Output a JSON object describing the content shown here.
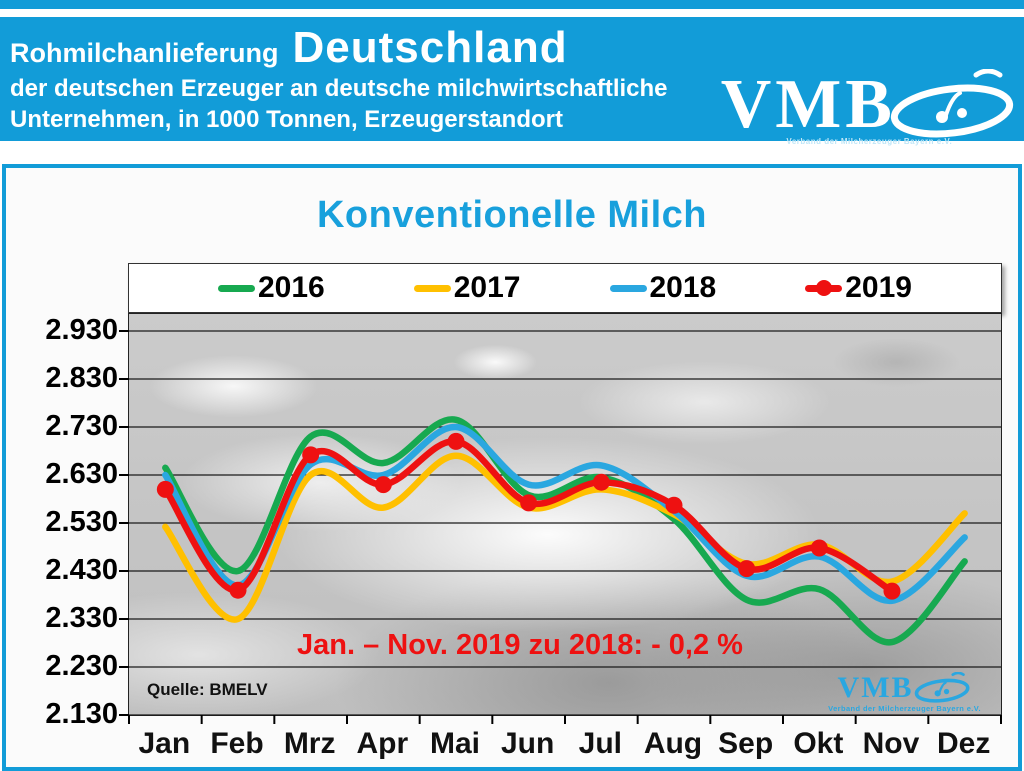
{
  "header": {
    "title_small": "Rohmilchanlieferung",
    "title_large": "Deutschland",
    "subtitle_line1": "der deutschen Erzeuger an deutsche milchwirtschaftliche",
    "subtitle_line2": "Unternehmen, in 1000 Tonnen, Erzeugerstandort",
    "logo_text": "VMB",
    "logo_tagline": "Verband der Milcherzeuger Bayern e.V."
  },
  "watermark": {
    "logo_text": "VMB",
    "tagline": "Verband der Milcherzeuger Bayern e.V."
  },
  "colors": {
    "banner_blue": "#129CD8",
    "title_blue": "#18A0DC",
    "annotation_red": "#EE1111",
    "grid_black": "#1a1a1a",
    "plot_gray": "#C6C6C6"
  },
  "chart_data": {
    "type": "line",
    "title": "Konventionelle Milch",
    "unit": "1000 Tonnen",
    "categories": [
      "Jan",
      "Feb",
      "Mrz",
      "Apr",
      "Mai",
      "Jun",
      "Jul",
      "Aug",
      "Sep",
      "Okt",
      "Nov",
      "Dez"
    ],
    "ylim": [
      2130,
      2930
    ],
    "ytick_step": 100,
    "yticks": [
      {
        "label": "2.930",
        "value": 2930
      },
      {
        "label": "2.830",
        "value": 2830
      },
      {
        "label": "2.730",
        "value": 2730
      },
      {
        "label": "2.630",
        "value": 2630
      },
      {
        "label": "2.530",
        "value": 2530
      },
      {
        "label": "2.430",
        "value": 2430
      },
      {
        "label": "2.330",
        "value": 2330
      },
      {
        "label": "2.230",
        "value": 2230
      },
      {
        "label": "2.130",
        "value": 2130
      }
    ],
    "grid": "horizontal",
    "legend_position": "top",
    "line_smoothing": true,
    "series": [
      {
        "name": "2016",
        "color": "#17A950",
        "marker": false,
        "values": [
          2645,
          2430,
          2710,
          2655,
          2745,
          2588,
          2625,
          2538,
          2370,
          2392,
          2282,
          2450
        ]
      },
      {
        "name": "2017",
        "color": "#FFC000",
        "marker": false,
        "values": [
          2522,
          2330,
          2630,
          2562,
          2670,
          2562,
          2600,
          2548,
          2445,
          2485,
          2408,
          2550
        ]
      },
      {
        "name": "2018",
        "color": "#2AA7E0",
        "marker": false,
        "values": [
          2630,
          2400,
          2652,
          2630,
          2730,
          2610,
          2650,
          2555,
          2420,
          2460,
          2368,
          2500
        ]
      },
      {
        "name": "2019",
        "color": "#EE1111",
        "marker": true,
        "values": [
          2600,
          2390,
          2672,
          2610,
          2700,
          2572,
          2615,
          2567,
          2435,
          2478,
          2388,
          null
        ]
      }
    ],
    "annotation": "Jan. – Nov. 2019 zu 2018: - 0,2 %",
    "source": "Quelle: BMELV"
  }
}
